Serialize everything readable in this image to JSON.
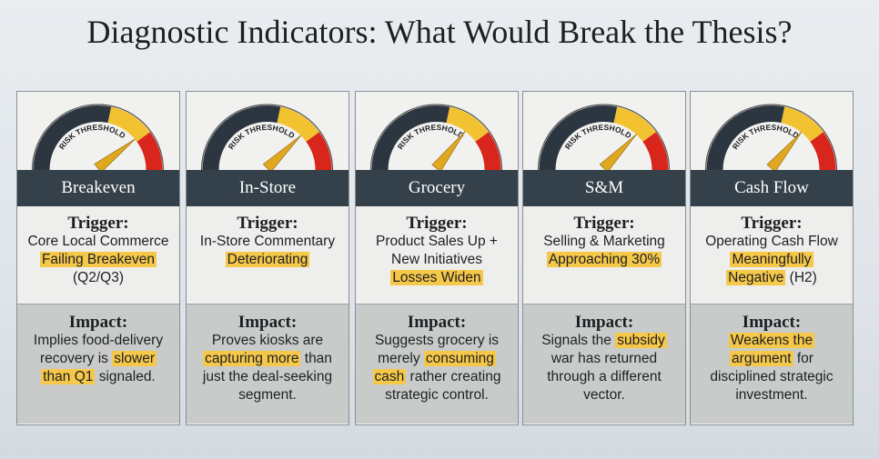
{
  "title": "Diagnostic Indicators: What Would Break the Thesis?",
  "cards": [
    {
      "gauge_label": "RISK THRESHOLD",
      "label": "Breakeven",
      "trigger": {
        "heading": "Trigger:",
        "lines": [
          [
            {
              "text": "Core Local Commerce",
              "highlight": false
            }
          ],
          [
            {
              "text": "Failing Breakeven",
              "highlight": true
            }
          ],
          [
            {
              "text": "(Q2/Q3)",
              "highlight": false
            }
          ]
        ]
      },
      "impact": {
        "heading": "Impact:",
        "lines": [
          [
            {
              "text": "Implies food-delivery",
              "highlight": false
            }
          ],
          [
            {
              "text": "recovery is ",
              "highlight": false
            },
            {
              "text": "slower",
              "highlight": true
            }
          ],
          [
            {
              "text": "than Q1",
              "highlight": true
            },
            {
              "text": " signaled.",
              "highlight": false
            }
          ]
        ]
      }
    },
    {
      "gauge_label": "RISK THRESHOLD",
      "label": "In-Store",
      "trigger": {
        "heading": "Trigger:",
        "lines": [
          [
            {
              "text": "In-Store Commentary",
              "highlight": false
            }
          ],
          [
            {
              "text": "Deteriorating",
              "highlight": true
            }
          ]
        ]
      },
      "impact": {
        "heading": "Impact:",
        "lines": [
          [
            {
              "text": "Proves kiosks are",
              "highlight": false
            }
          ],
          [
            {
              "text": "capturing more",
              "highlight": true
            },
            {
              "text": " than",
              "highlight": false
            }
          ],
          [
            {
              "text": "just the deal-seeking",
              "highlight": false
            }
          ],
          [
            {
              "text": "segment.",
              "highlight": false
            }
          ]
        ]
      }
    },
    {
      "gauge_label": "RISK THRESHOLD",
      "label": "Grocery",
      "trigger": {
        "heading": "Trigger:",
        "lines": [
          [
            {
              "text": "Product Sales Up +",
              "highlight": false
            }
          ],
          [
            {
              "text": "New Initiatives",
              "highlight": false
            }
          ],
          [
            {
              "text": "Losses Widen",
              "highlight": true
            }
          ]
        ]
      },
      "impact": {
        "heading": "Impact:",
        "lines": [
          [
            {
              "text": "Suggests grocery is",
              "highlight": false
            }
          ],
          [
            {
              "text": "merely ",
              "highlight": false
            },
            {
              "text": "consuming",
              "highlight": true
            }
          ],
          [
            {
              "text": "cash",
              "highlight": true
            },
            {
              "text": " rather creating",
              "highlight": false
            }
          ],
          [
            {
              "text": "strategic control.",
              "highlight": false
            }
          ]
        ]
      }
    },
    {
      "gauge_label": "RISK THRESHOLD",
      "label": "S&M",
      "trigger": {
        "heading": "Trigger:",
        "lines": [
          [
            {
              "text": "Selling & Marketing",
              "highlight": false
            }
          ],
          [
            {
              "text": "Approaching 30%",
              "highlight": true
            }
          ]
        ]
      },
      "impact": {
        "heading": "Impact:",
        "lines": [
          [
            {
              "text": "Signals the ",
              "highlight": false
            },
            {
              "text": "subsidy",
              "highlight": true
            }
          ],
          [
            {
              "text": "war has returned",
              "highlight": false
            }
          ],
          [
            {
              "text": "through a different",
              "highlight": false
            }
          ],
          [
            {
              "text": "vector.",
              "highlight": false
            }
          ]
        ]
      }
    },
    {
      "gauge_label": "RISK THRESHOLD",
      "label": "Cash Flow",
      "trigger": {
        "heading": "Trigger:",
        "lines": [
          [
            {
              "text": "Operating Cash Flow",
              "highlight": false
            }
          ],
          [
            {
              "text": "Meaningfully",
              "highlight": true
            }
          ],
          [
            {
              "text": "Negative",
              "highlight": true
            },
            {
              "text": " (H2)",
              "highlight": false
            }
          ]
        ]
      },
      "impact": {
        "heading": "Impact:",
        "lines": [
          [
            {
              "text": "Weakens the",
              "highlight": true
            }
          ],
          [
            {
              "text": "argument",
              "highlight": true
            },
            {
              "text": " for",
              "highlight": false
            }
          ],
          [
            {
              "text": "disciplined strategic",
              "highlight": false
            }
          ],
          [
            {
              "text": "investment.",
              "highlight": false
            }
          ]
        ]
      }
    }
  ]
}
